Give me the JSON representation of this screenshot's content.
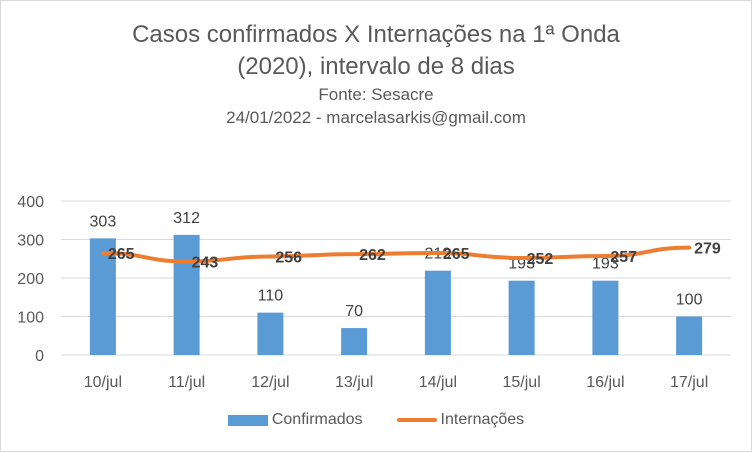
{
  "chart_data": {
    "type": "bar",
    "title_lines": [
      "Casos confirmados X Internações na 1ª Onda",
      "(2020), intervalo de 8 dias"
    ],
    "subtitle_lines": [
      "Fonte: Sesacre",
      "24/01/2022 - marcelasarkis@gmail.com"
    ],
    "categories": [
      "10/jul",
      "11/jul",
      "12/jul",
      "13/jul",
      "14/jul",
      "15/jul",
      "16/jul",
      "17/jul"
    ],
    "series": [
      {
        "name": "Confirmados",
        "type": "bar",
        "color": "#5b9bd5",
        "values": [
          303,
          312,
          110,
          70,
          219,
          193,
          193,
          100
        ]
      },
      {
        "name": "Internações",
        "type": "line",
        "color": "#ed7d31",
        "values": [
          265,
          243,
          256,
          262,
          265,
          252,
          257,
          279
        ]
      }
    ],
    "ylim": [
      0,
      400
    ],
    "yticks": [
      "0",
      "100",
      "200",
      "300",
      "400"
    ],
    "grid": true,
    "legend_position": "bottom"
  }
}
